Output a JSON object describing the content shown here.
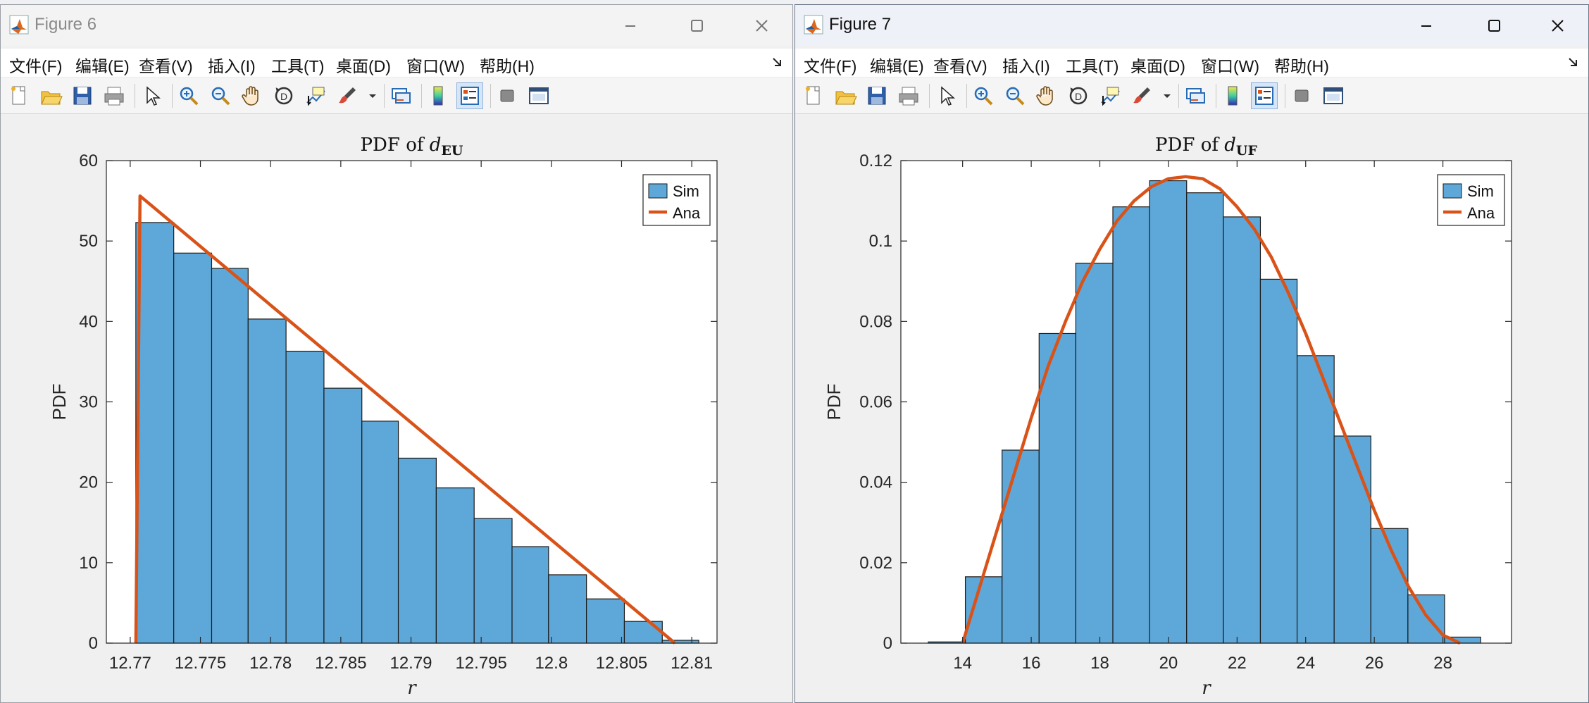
{
  "menu": [
    "文件(F)",
    "编辑(E)",
    "查看(V)",
    "插入(I)",
    "工具(T)",
    "桌面(D)",
    "窗口(W)",
    "帮助(H)"
  ],
  "colors": {
    "bar": "#5ea8d9",
    "line": "#d95319",
    "bar_edge": "#1a1a1a"
  },
  "windows": [
    {
      "title": "Figure 6",
      "active": false,
      "chart_data": {
        "type": "bar",
        "title": "PDF of ",
        "title_sym": "d",
        "title_sub": "EU",
        "xlabel": "r",
        "ylabel": "PDF",
        "xlim": [
          12.7683,
          12.8118
        ],
        "ylim": [
          0,
          60
        ],
        "xticks": [
          12.77,
          12.775,
          12.78,
          12.785,
          12.79,
          12.795,
          12.8,
          12.805,
          12.81
        ],
        "xtick_labels": [
          "12.77",
          "12.775",
          "12.78",
          "12.785",
          "12.79",
          "12.795",
          "12.8",
          "12.805",
          "12.81"
        ],
        "yticks": [
          0,
          10,
          20,
          30,
          40,
          50,
          60
        ],
        "ytick_labels": [
          "0",
          "10",
          "20",
          "30",
          "40",
          "50",
          "60"
        ],
        "bin_edges": [
          12.7704,
          12.7731,
          12.7758,
          12.7784,
          12.7811,
          12.7838,
          12.7865,
          12.7891,
          12.7918,
          12.7945,
          12.7972,
          12.7998,
          12.8025,
          12.8052,
          12.8079,
          12.8105
        ],
        "bin_values": [
          52.3,
          48.5,
          46.6,
          40.3,
          36.3,
          31.7,
          27.6,
          23.0,
          19.3,
          15.5,
          12.0,
          8.5,
          5.5,
          2.7,
          0.35
        ],
        "series": [
          {
            "name": "Sim",
            "kind": "histogram"
          },
          {
            "name": "Ana",
            "kind": "line",
            "x": [
              12.7704,
              12.7707,
              12.8088
            ],
            "y": [
              0,
              55.6,
              0
            ]
          }
        ],
        "legend": "top-right",
        "grid": false
      }
    },
    {
      "title": "Figure 7",
      "active": true,
      "chart_data": {
        "type": "bar",
        "title": "PDF of ",
        "title_sym": "d",
        "title_sub": "UF",
        "xlabel": "r",
        "ylabel": "PDF",
        "xlim": [
          12.2,
          30
        ],
        "ylim": [
          0,
          0.12
        ],
        "xticks": [
          14,
          16,
          18,
          20,
          22,
          24,
          26,
          28
        ],
        "xtick_labels": [
          "14",
          "16",
          "18",
          "20",
          "22",
          "24",
          "26",
          "28"
        ],
        "yticks": [
          0,
          0.02,
          0.04,
          0.06,
          0.08,
          0.1,
          0.12
        ],
        "ytick_labels": [
          "0",
          "0.02",
          "0.04",
          "0.06",
          "0.08",
          "0.1",
          "0.12"
        ],
        "bin_edges": [
          13.0,
          14.08,
          15.15,
          16.23,
          17.3,
          18.38,
          19.45,
          20.53,
          21.6,
          22.68,
          23.75,
          24.83,
          25.9,
          26.98,
          28.05,
          29.1
        ],
        "bin_values": [
          0.0003,
          0.0165,
          0.048,
          0.077,
          0.0945,
          0.1085,
          0.115,
          0.112,
          0.106,
          0.0905,
          0.0715,
          0.0515,
          0.0285,
          0.012,
          0.0015
        ],
        "series": [
          {
            "name": "Sim",
            "kind": "histogram"
          },
          {
            "name": "Ana",
            "kind": "line",
            "x": [
              14.0,
              14.5,
              15.0,
              15.5,
              16.0,
              16.5,
              17.0,
              17.5,
              18.0,
              18.5,
              19.0,
              19.5,
              20.0,
              20.5,
              21.0,
              21.5,
              22.0,
              22.5,
              23.0,
              23.5,
              24.0,
              24.5,
              25.0,
              25.5,
              26.0,
              26.5,
              27.0,
              27.5,
              28.0,
              28.5
            ],
            "y": [
              0.0,
              0.014,
              0.028,
              0.042,
              0.056,
              0.069,
              0.08,
              0.09,
              0.098,
              0.105,
              0.11,
              0.1135,
              0.1155,
              0.116,
              0.1155,
              0.113,
              0.1085,
              0.103,
              0.096,
              0.087,
              0.077,
              0.066,
              0.055,
              0.044,
              0.033,
              0.023,
              0.014,
              0.007,
              0.002,
              0.0
            ]
          }
        ],
        "legend": "top-right",
        "grid": false
      }
    }
  ]
}
